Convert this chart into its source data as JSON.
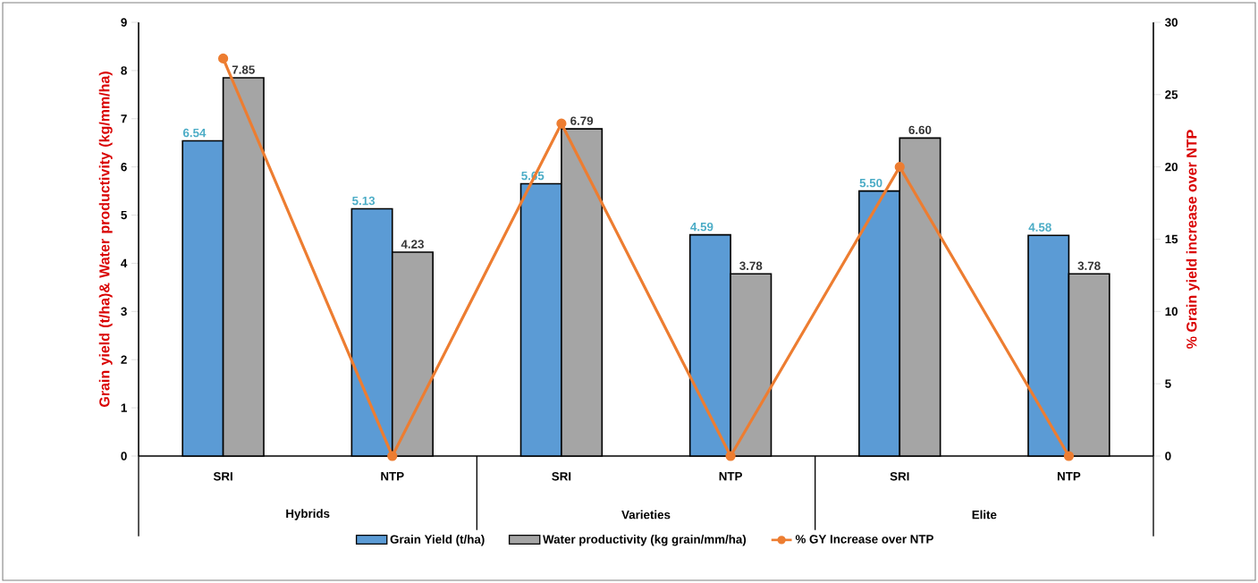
{
  "chart_data": {
    "type": "bar",
    "categories": [
      "SRI",
      "NTP",
      "SRI",
      "NTP",
      "SRI",
      "NTP"
    ],
    "series": [
      {
        "name": "Grain Yield (t/ha)",
        "color": "#5b9bd5",
        "values": [
          6.54,
          5.13,
          5.65,
          4.59,
          5.5,
          4.58
        ],
        "value_labels": [
          "6.54",
          "5.13",
          "5.65",
          "4.59",
          "5.50",
          "4.58"
        ]
      },
      {
        "name": "Water productivity (kg grain/mm/ha)",
        "color": "#a5a5a5",
        "values": [
          7.85,
          4.23,
          6.79,
          3.78,
          6.6,
          3.78
        ],
        "value_labels": [
          "7.85",
          "4.23",
          "6.79",
          "3.78",
          "6.60",
          "3.78"
        ]
      },
      {
        "name": "% GY Increase over NTP",
        "type": "line",
        "axis": "y2",
        "color": "#ed7d31",
        "marker": "circle",
        "values": [
          27.5,
          0,
          23,
          0,
          20,
          0
        ]
      }
    ],
    "ylabel": "Grain yield (t/ha)& Water productivity (kg/mm/ha)",
    "y2label": "% Grain yield increase over NTP",
    "ylim": [
      0,
      9
    ],
    "yticks": [
      0,
      1,
      2,
      3,
      4,
      5,
      6,
      7,
      8,
      9
    ],
    "y2lim": [
      0,
      30
    ],
    "y2ticks": [
      0,
      5,
      10,
      15,
      20,
      25,
      30
    ],
    "legend": "bottom",
    "grid": false,
    "annotations": [
      "Hybrids",
      "Varieties",
      "Elite"
    ]
  }
}
